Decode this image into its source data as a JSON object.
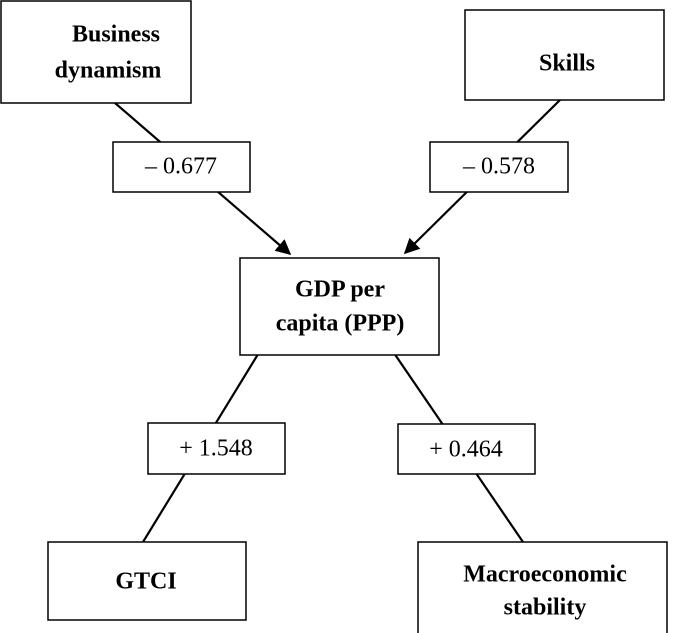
{
  "nodes": [
    {
      "label": [
        "Business",
        "dynamism"
      ]
    },
    {
      "label": [
        "Skills"
      ]
    },
    {
      "label": [
        "GDP per",
        "capita (PPP)"
      ]
    },
    {
      "label": [
        "GTCI"
      ]
    },
    {
      "label": [
        "Macroeconomic",
        "stability"
      ]
    }
  ],
  "edges": [
    {
      "label": "– 0.677"
    },
    {
      "label": "– 0.578"
    },
    {
      "label": "+ 1.548"
    },
    {
      "label": "+ 0.464"
    }
  ]
}
